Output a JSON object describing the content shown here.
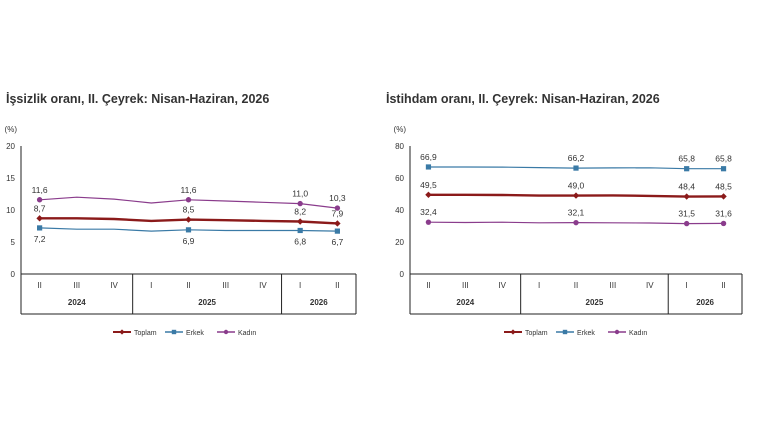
{
  "charts": [
    {
      "title": "İşsizlik oranı, II. Çeyrek: Nisan-Haziran, 2026",
      "unit": "(%)",
      "chart_data": {
        "type": "line",
        "title": "İşsizlik oranı, II. Çeyrek: Nisan-Haziran, 2026",
        "ylabel": "(%)",
        "ylim": [
          0,
          20
        ],
        "yticks": [
          "0",
          "5",
          "10",
          "15",
          "20"
        ],
        "categories": [
          "II",
          "III",
          "IV",
          "I",
          "II",
          "III",
          "IV",
          "I",
          "II"
        ],
        "year_groups": [
          {
            "label": "2024",
            "count": 3
          },
          {
            "label": "2025",
            "count": 4
          },
          {
            "label": "2026",
            "count": 2
          }
        ],
        "legend_position": "bottom",
        "series": [
          {
            "name": "Toplam",
            "color": "#8b1a1a",
            "values": [
              8.7,
              8.7,
              8.6,
              8.3,
              8.5,
              8.4,
              8.3,
              8.2,
              7.9
            ],
            "labels": [
              "8,7",
              "",
              "",
              "",
              "8,5",
              "",
              "",
              "8,2",
              "7,9"
            ],
            "label_pos": [
              "above",
              "",
              "",
              "",
              "above",
              "",
              "",
              "above",
              "above"
            ]
          },
          {
            "name": "Erkek",
            "color": "#3a7aa6",
            "values": [
              7.2,
              7.0,
              7.0,
              6.7,
              6.9,
              6.8,
              6.8,
              6.8,
              6.7
            ],
            "labels": [
              "7,2",
              "",
              "",
              "",
              "6,9",
              "",
              "",
              "6,8",
              "6,7"
            ],
            "label_pos": [
              "below",
              "",
              "",
              "",
              "below",
              "",
              "",
              "below",
              "below"
            ]
          },
          {
            "name": "Kadın",
            "color": "#8a3c8c",
            "values": [
              11.6,
              12.0,
              11.7,
              11.1,
              11.6,
              11.4,
              11.2,
              11.0,
              10.3
            ],
            "labels": [
              "11,6",
              "",
              "",
              "",
              "11,6",
              "",
              "",
              "11,0",
              "10,3"
            ],
            "label_pos": [
              "above",
              "",
              "",
              "",
              "above",
              "",
              "",
              "above",
              "above"
            ]
          }
        ]
      }
    },
    {
      "title": "İstihdam oranı, II. Çeyrek: Nisan-Haziran, 2026",
      "unit": "(%)",
      "chart_data": {
        "type": "line",
        "title": "İstihdam oranı, II. Çeyrek: Nisan-Haziran, 2026",
        "ylabel": "(%)",
        "ylim": [
          0,
          80
        ],
        "yticks": [
          "0",
          "20",
          "40",
          "60",
          "80"
        ],
        "categories": [
          "II",
          "III",
          "IV",
          "I",
          "II",
          "III",
          "IV",
          "I",
          "II"
        ],
        "year_groups": [
          {
            "label": "2024",
            "count": 3
          },
          {
            "label": "2025",
            "count": 4
          },
          {
            "label": "2026",
            "count": 2
          }
        ],
        "legend_position": "bottom",
        "series": [
          {
            "name": "Toplam",
            "color": "#8b1a1a",
            "values": [
              49.5,
              49.5,
              49.4,
              49.0,
              49.0,
              49.1,
              48.8,
              48.4,
              48.5
            ],
            "labels": [
              "49,5",
              "",
              "",
              "",
              "49,0",
              "",
              "",
              "48,4",
              "48,5"
            ],
            "label_pos": [
              "above",
              "",
              "",
              "",
              "above",
              "",
              "",
              "above",
              "above"
            ]
          },
          {
            "name": "Erkek",
            "color": "#3a7aa6",
            "values": [
              66.9,
              66.9,
              66.8,
              66.5,
              66.2,
              66.3,
              66.4,
              65.8,
              65.8
            ],
            "labels": [
              "66,9",
              "",
              "",
              "",
              "66,2",
              "",
              "",
              "65,8",
              "65,8"
            ],
            "label_pos": [
              "above",
              "",
              "",
              "",
              "above",
              "",
              "",
              "above",
              "above"
            ]
          },
          {
            "name": "Kadın",
            "color": "#8a3c8c",
            "values": [
              32.4,
              32.2,
              32.4,
              32.0,
              32.1,
              32.0,
              31.9,
              31.5,
              31.6
            ],
            "labels": [
              "32,4",
              "",
              "",
              "",
              "32,1",
              "",
              "",
              "31,5",
              "31,6"
            ],
            "label_pos": [
              "above",
              "",
              "",
              "",
              "above",
              "",
              "",
              "above",
              "above"
            ]
          }
        ]
      }
    }
  ]
}
